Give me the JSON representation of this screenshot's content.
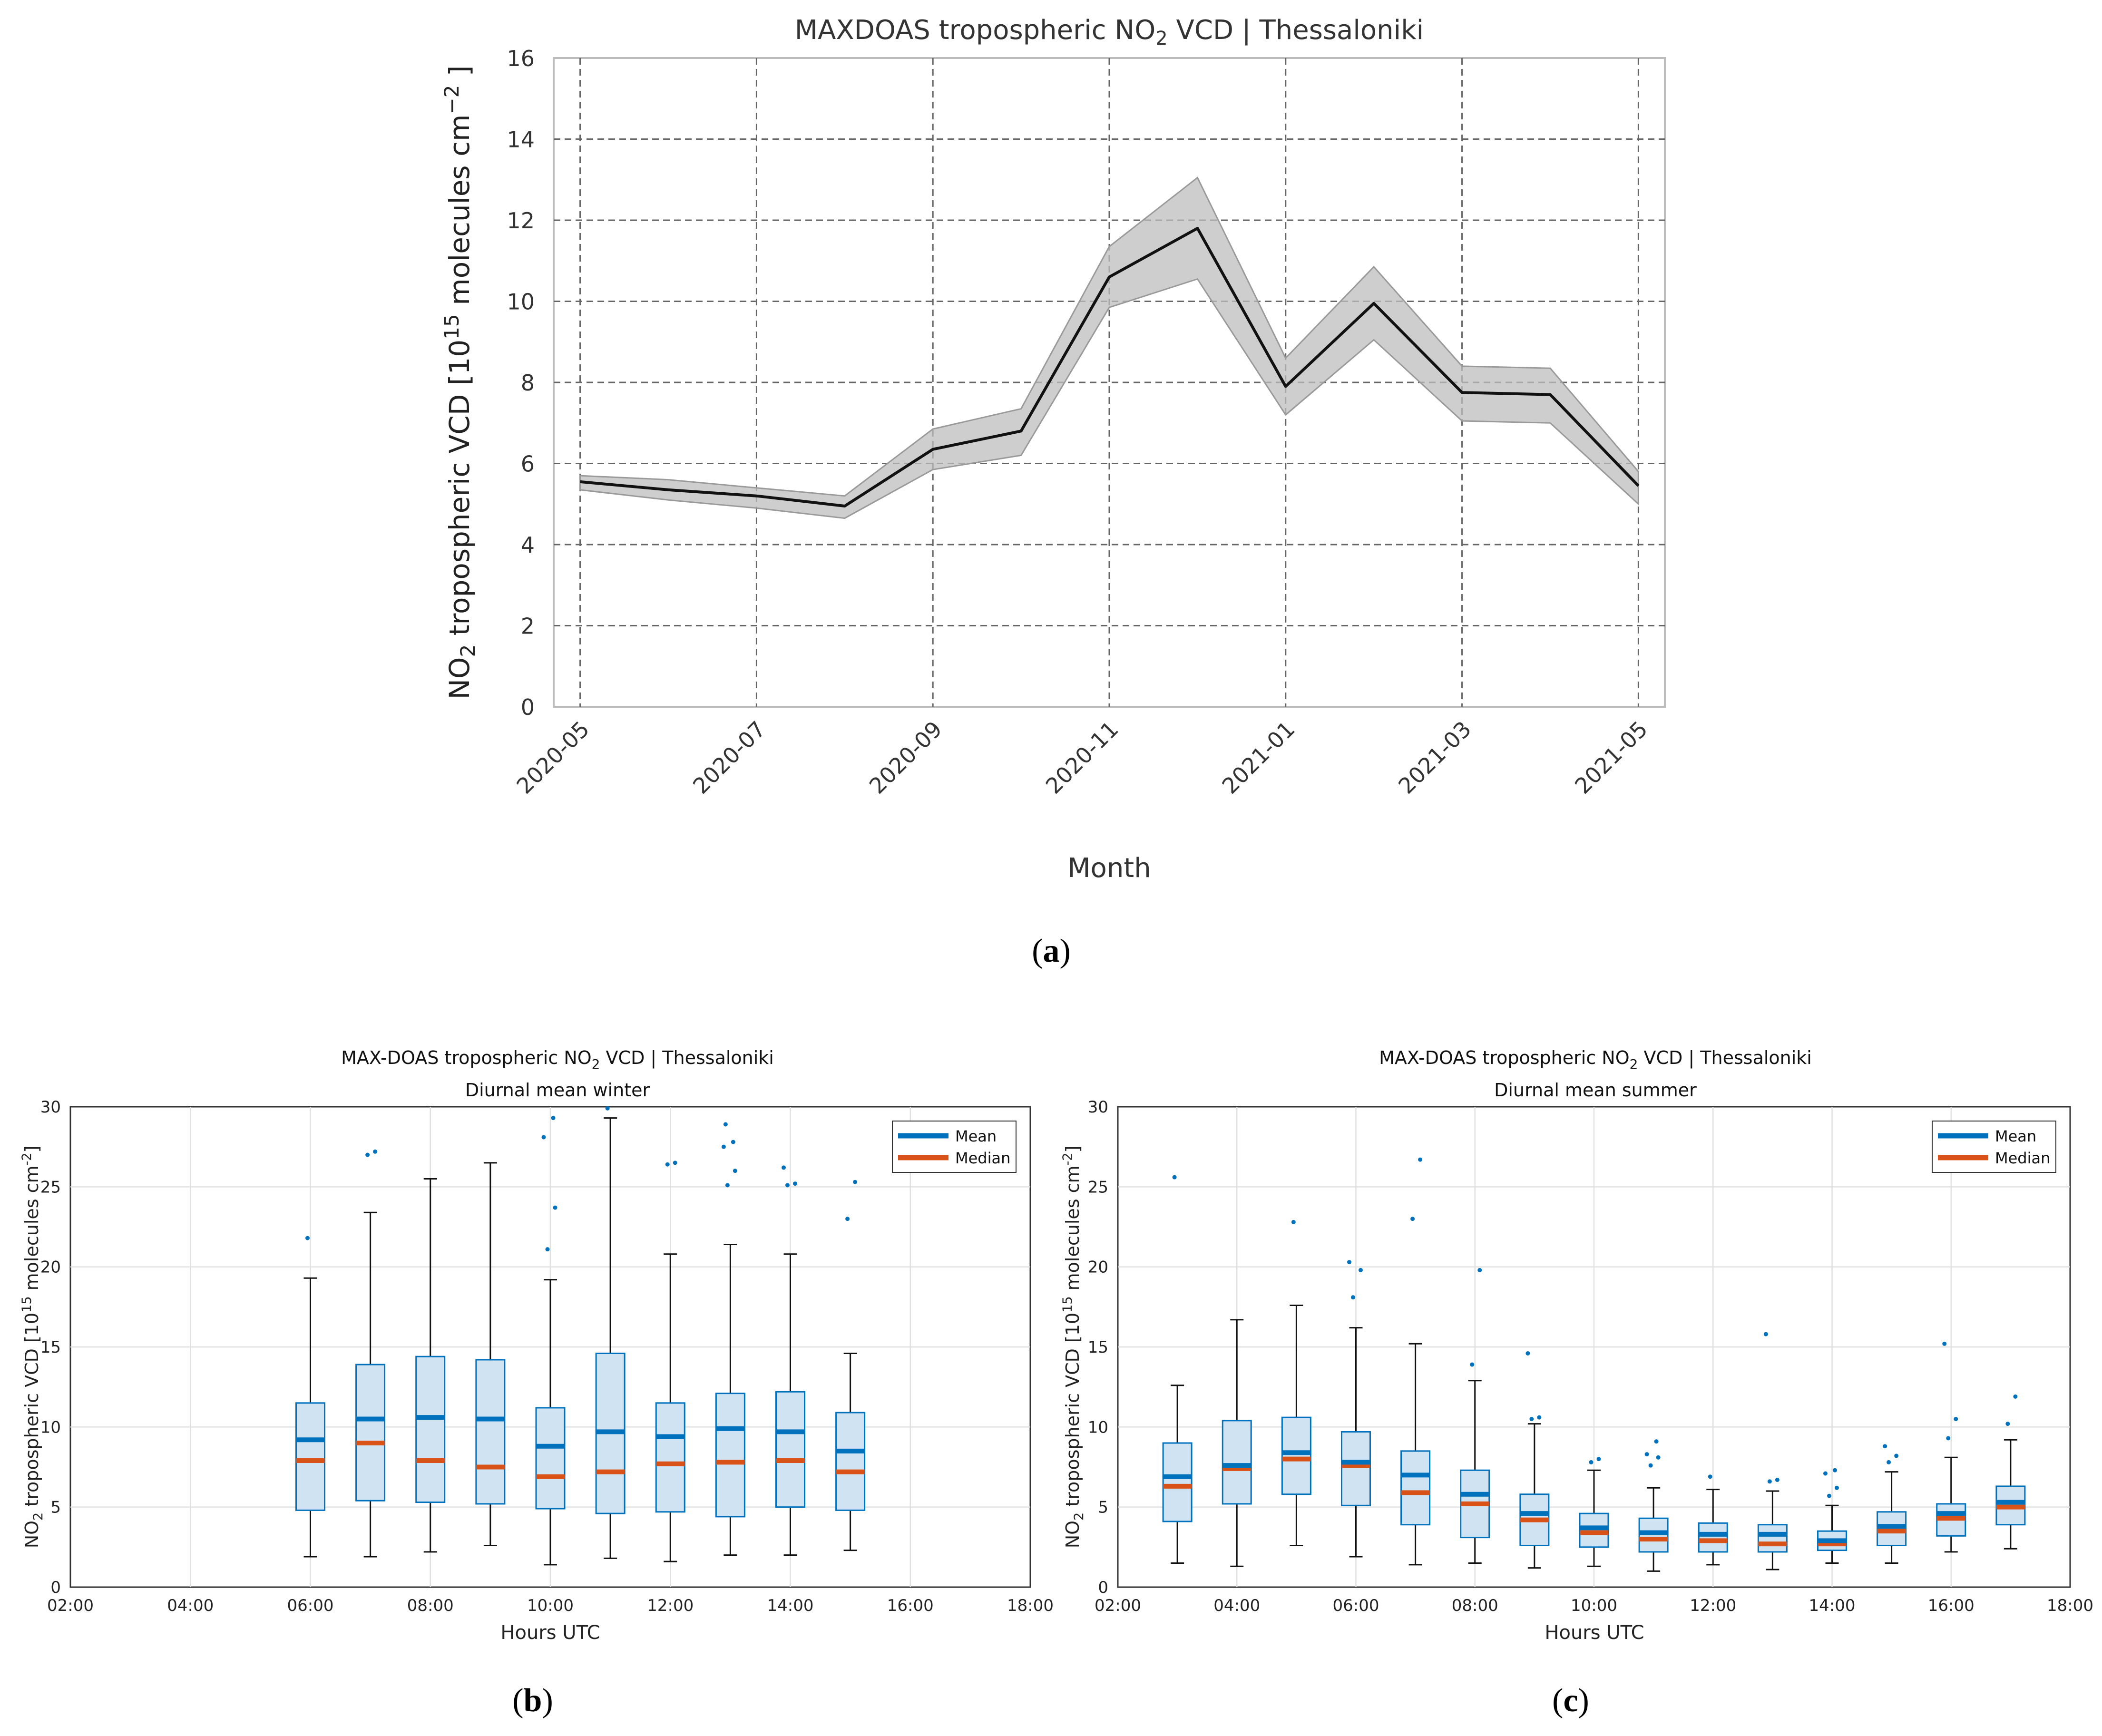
{
  "panel_labels": {
    "a": "a",
    "b": "b",
    "c": "c"
  },
  "chart_data": [
    {
      "id": "a",
      "type": "line",
      "title": "MAXDOAS tropospheric NO2 VCD | Thessaloniki",
      "title_parts": {
        "pre": "MAXDOAS tropospheric NO",
        "sub": "2",
        "post": " VCD | Thessaloniki"
      },
      "xlabel": "Month",
      "ylabel": "NO2 tropospheric VCD [10^15 molecules cm^-2 ]",
      "ylabel_parts": {
        "a": "NO",
        "sub": "2",
        "b": " tropospheric VCD [10",
        "sup1": "15",
        "c": " molecules cm",
        "sup2": "−2",
        "d": " ]"
      },
      "ylim": [
        0,
        16
      ],
      "yticks": [
        "0",
        "2",
        "4",
        "6",
        "8",
        "10",
        "12",
        "14",
        "16"
      ],
      "xlim_months": [
        -0.3,
        12.3
      ],
      "xticks": [
        {
          "label": "2020-05",
          "m": 0
        },
        {
          "label": "2020-07",
          "m": 2
        },
        {
          "label": "2020-09",
          "m": 4
        },
        {
          "label": "2020-11",
          "m": 6
        },
        {
          "label": "2021-01",
          "m": 8
        },
        {
          "label": "2021-03",
          "m": 10
        },
        {
          "label": "2021-05",
          "m": 12
        }
      ],
      "grid": true,
      "series": {
        "name": "monthly mean",
        "x_months": [
          0,
          1,
          2,
          3,
          4,
          5,
          6,
          7,
          8,
          9,
          10,
          11,
          12
        ],
        "values": [
          5.55,
          5.35,
          5.2,
          4.95,
          6.35,
          6.8,
          10.6,
          11.8,
          7.9,
          9.95,
          7.75,
          7.7,
          5.45
        ],
        "upper": [
          5.7,
          5.6,
          5.4,
          5.2,
          6.85,
          7.35,
          11.35,
          13.05,
          8.6,
          10.85,
          8.4,
          8.35,
          5.8
        ],
        "lower": [
          5.35,
          5.1,
          4.9,
          4.65,
          5.85,
          6.2,
          9.85,
          10.55,
          7.2,
          9.05,
          7.05,
          7.0,
          5.0
        ]
      }
    },
    {
      "id": "b",
      "type": "boxplot",
      "title_line1_parts": {
        "pre": "MAX-DOAS tropospheric NO",
        "sub": "2",
        "post": " VCD | Thessaloniki"
      },
      "title_line2": "Diurnal mean winter",
      "xlabel": "Hours UTC",
      "ylabel_parts": {
        "a": "NO",
        "sub": "2",
        "b": " tropospheric VCD [10",
        "sup1": "15",
        "c": " molecules cm",
        "sup2": "-2",
        "d": "]"
      },
      "ylim": [
        0,
        30
      ],
      "xlim": [
        2,
        18
      ],
      "yticks": [
        "0",
        "5",
        "10",
        "15",
        "20",
        "25",
        "30"
      ],
      "xticks": [
        {
          "label": "02:00",
          "h": 2
        },
        {
          "label": "04:00",
          "h": 4
        },
        {
          "label": "06:00",
          "h": 6
        },
        {
          "label": "08:00",
          "h": 8
        },
        {
          "label": "10:00",
          "h": 10
        },
        {
          "label": "12:00",
          "h": 12
        },
        {
          "label": "14:00",
          "h": 14
        },
        {
          "label": "16:00",
          "h": 16
        },
        {
          "label": "18:00",
          "h": 18
        }
      ],
      "legend": {
        "entries": [
          "Mean",
          "Median"
        ],
        "position": "top-right"
      },
      "boxes": [
        {
          "hour": 6,
          "whislo": 1.9,
          "q1": 4.8,
          "median": 7.9,
          "mean": 9.2,
          "q3": 11.5,
          "whishi": 19.3,
          "fliers": [
            21.8
          ]
        },
        {
          "hour": 7,
          "whislo": 1.9,
          "q1": 5.4,
          "median": 9.0,
          "mean": 10.5,
          "q3": 13.9,
          "whishi": 23.4,
          "fliers": [
            27.0,
            27.2
          ]
        },
        {
          "hour": 8,
          "whislo": 2.2,
          "q1": 5.3,
          "median": 7.9,
          "mean": 10.6,
          "q3": 14.4,
          "whishi": 25.5,
          "fliers": []
        },
        {
          "hour": 9,
          "whislo": 2.6,
          "q1": 5.2,
          "median": 7.5,
          "mean": 10.5,
          "q3": 14.2,
          "whishi": 26.5,
          "fliers": []
        },
        {
          "hour": 10,
          "whislo": 1.4,
          "q1": 4.9,
          "median": 6.9,
          "mean": 8.8,
          "q3": 11.2,
          "whishi": 19.2,
          "fliers": [
            21.1,
            23.7,
            28.1,
            29.3
          ]
        },
        {
          "hour": 11,
          "whislo": 1.8,
          "q1": 4.6,
          "median": 7.2,
          "mean": 9.7,
          "q3": 14.6,
          "whishi": 29.3,
          "fliers": [
            29.9
          ]
        },
        {
          "hour": 12,
          "whislo": 1.6,
          "q1": 4.7,
          "median": 7.7,
          "mean": 9.4,
          "q3": 11.5,
          "whishi": 20.8,
          "fliers": [
            26.4,
            26.5
          ]
        },
        {
          "hour": 13,
          "whislo": 2.0,
          "q1": 4.4,
          "median": 7.8,
          "mean": 9.9,
          "q3": 12.1,
          "whishi": 21.4,
          "fliers": [
            25.1,
            26.0,
            27.5,
            27.8,
            28.9
          ]
        },
        {
          "hour": 14,
          "whislo": 2.0,
          "q1": 5.0,
          "median": 7.9,
          "mean": 9.7,
          "q3": 12.2,
          "whishi": 20.8,
          "fliers": [
            25.1,
            25.2,
            26.2
          ]
        },
        {
          "hour": 15,
          "whislo": 2.3,
          "q1": 4.8,
          "median": 7.2,
          "mean": 8.5,
          "q3": 10.9,
          "whishi": 14.6,
          "fliers": [
            23.0,
            25.3
          ]
        }
      ]
    },
    {
      "id": "c",
      "type": "boxplot",
      "title_line1_parts": {
        "pre": "MAX-DOAS tropospheric NO",
        "sub": "2",
        "post": " VCD | Thessaloniki"
      },
      "title_line2": "Diurnal mean summer",
      "xlabel": "Hours UTC",
      "ylabel_parts": {
        "a": "NO",
        "sub": "2",
        "b": " tropospheric VCD [10",
        "sup1": "15",
        "c": " molecules cm",
        "sup2": "-2",
        "d": "]"
      },
      "ylim": [
        0,
        30
      ],
      "xlim": [
        2,
        18
      ],
      "yticks": [
        "0",
        "5",
        "10",
        "15",
        "20",
        "25",
        "30"
      ],
      "xticks": [
        {
          "label": "02:00",
          "h": 2
        },
        {
          "label": "04:00",
          "h": 4
        },
        {
          "label": "06:00",
          "h": 6
        },
        {
          "label": "08:00",
          "h": 8
        },
        {
          "label": "10:00",
          "h": 10
        },
        {
          "label": "12:00",
          "h": 12
        },
        {
          "label": "14:00",
          "h": 14
        },
        {
          "label": "16:00",
          "h": 16
        },
        {
          "label": "18:00",
          "h": 18
        }
      ],
      "legend": {
        "entries": [
          "Mean",
          "Median"
        ],
        "position": "top-right"
      },
      "boxes": [
        {
          "hour": 3,
          "whislo": 1.5,
          "q1": 4.1,
          "median": 6.3,
          "mean": 6.9,
          "q3": 9.0,
          "whishi": 12.6,
          "fliers": [
            25.6
          ]
        },
        {
          "hour": 4,
          "whislo": 1.3,
          "q1": 5.2,
          "median": 7.4,
          "mean": 7.6,
          "q3": 10.4,
          "whishi": 16.7,
          "fliers": []
        },
        {
          "hour": 5,
          "whislo": 2.6,
          "q1": 5.8,
          "median": 8.0,
          "mean": 8.4,
          "q3": 10.6,
          "whishi": 17.6,
          "fliers": [
            22.8
          ]
        },
        {
          "hour": 6,
          "whislo": 1.9,
          "q1": 5.1,
          "median": 7.6,
          "mean": 7.8,
          "q3": 9.7,
          "whishi": 16.2,
          "fliers": [
            18.1,
            19.8,
            20.3
          ]
        },
        {
          "hour": 7,
          "whislo": 1.4,
          "q1": 3.9,
          "median": 5.9,
          "mean": 7.0,
          "q3": 8.5,
          "whishi": 15.2,
          "fliers": [
            23.0,
            26.7
          ]
        },
        {
          "hour": 8,
          "whislo": 1.5,
          "q1": 3.1,
          "median": 5.2,
          "mean": 5.8,
          "q3": 7.3,
          "whishi": 12.9,
          "fliers": [
            13.9,
            19.8
          ]
        },
        {
          "hour": 9,
          "whislo": 1.2,
          "q1": 2.6,
          "median": 4.2,
          "mean": 4.6,
          "q3": 5.8,
          "whishi": 10.2,
          "fliers": [
            10.5,
            10.6,
            14.6
          ]
        },
        {
          "hour": 10,
          "whislo": 1.3,
          "q1": 2.5,
          "median": 3.4,
          "mean": 3.7,
          "q3": 4.6,
          "whishi": 7.3,
          "fliers": [
            7.8,
            8.0
          ]
        },
        {
          "hour": 11,
          "whislo": 1.0,
          "q1": 2.2,
          "median": 3.0,
          "mean": 3.4,
          "q3": 4.3,
          "whishi": 6.2,
          "fliers": [
            7.6,
            8.1,
            8.3,
            9.1
          ]
        },
        {
          "hour": 12,
          "whislo": 1.4,
          "q1": 2.2,
          "median": 2.9,
          "mean": 3.3,
          "q3": 4.0,
          "whishi": 6.1,
          "fliers": [
            6.9
          ]
        },
        {
          "hour": 13,
          "whislo": 1.1,
          "q1": 2.2,
          "median": 2.7,
          "mean": 3.3,
          "q3": 3.9,
          "whishi": 6.0,
          "fliers": [
            6.6,
            6.7,
            15.8
          ]
        },
        {
          "hour": 14,
          "whislo": 1.5,
          "q1": 2.3,
          "median": 2.7,
          "mean": 2.9,
          "q3": 3.5,
          "whishi": 5.1,
          "fliers": [
            5.7,
            6.2,
            7.1,
            7.3
          ]
        },
        {
          "hour": 15,
          "whislo": 1.5,
          "q1": 2.6,
          "median": 3.5,
          "mean": 3.8,
          "q3": 4.7,
          "whishi": 7.2,
          "fliers": [
            7.8,
            8.2,
            8.8
          ]
        },
        {
          "hour": 16,
          "whislo": 2.2,
          "q1": 3.2,
          "median": 4.3,
          "mean": 4.6,
          "q3": 5.2,
          "whishi": 8.1,
          "fliers": [
            9.3,
            10.5,
            15.2
          ]
        },
        {
          "hour": 17,
          "whislo": 2.4,
          "q1": 3.9,
          "median": 5.0,
          "mean": 5.3,
          "q3": 6.3,
          "whishi": 9.2,
          "fliers": [
            10.2,
            11.9
          ]
        }
      ]
    }
  ],
  "colors": {
    "mean": "#0072BD",
    "median": "#D95319",
    "box_fill": "#CFE3F2",
    "line": "#111111",
    "band": "#BDBDBD"
  }
}
